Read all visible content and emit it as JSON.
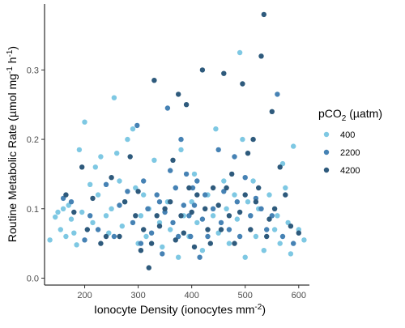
{
  "chart_data": {
    "type": "scatter",
    "title": "",
    "xlabel": "Ionocyte Density (ionocytes mm^-2)",
    "ylabel": "Routine Metabolic Rate (µmol mg^-1 h^-1)",
    "xlim": [
      125,
      620
    ],
    "ylim": [
      -0.01,
      0.395
    ],
    "x_ticks": [
      200,
      300,
      400,
      500,
      600
    ],
    "y_ticks": [
      0.0,
      0.1,
      0.2,
      0.3
    ],
    "x_tick_labels": [
      "200",
      "300",
      "400",
      "500",
      "600"
    ],
    "y_tick_labels": [
      "0.0",
      "0.1",
      "0.2",
      "0.3"
    ],
    "grid": false,
    "legend_position": "right",
    "legend_title": "pCO2 (µatm)",
    "series": [
      {
        "name": "400",
        "color": "#7ec8e3",
        "points": [
          [
            135,
            0.055
          ],
          [
            145,
            0.088
          ],
          [
            150,
            0.095
          ],
          [
            155,
            0.07
          ],
          [
            160,
            0.1
          ],
          [
            165,
            0.06
          ],
          [
            170,
            0.105
          ],
          [
            175,
            0.085
          ],
          [
            180,
            0.065
          ],
          [
            185,
            0.048
          ],
          [
            190,
            0.185
          ],
          [
            195,
            0.095
          ],
          [
            200,
            0.225
          ],
          [
            210,
            0.135
          ],
          [
            215,
            0.08
          ],
          [
            220,
            0.16
          ],
          [
            225,
            0.12
          ],
          [
            230,
            0.175
          ],
          [
            240,
            0.09
          ],
          [
            245,
            0.065
          ],
          [
            250,
            0.1
          ],
          [
            255,
            0.26
          ],
          [
            260,
            0.18
          ],
          [
            265,
            0.14
          ],
          [
            270,
            0.075
          ],
          [
            275,
            0.11
          ],
          [
            280,
            0.2
          ],
          [
            290,
            0.215
          ],
          [
            295,
            0.13
          ],
          [
            300,
            0.05
          ],
          [
            305,
            0.09
          ],
          [
            310,
            0.12
          ],
          [
            315,
            0.06
          ],
          [
            320,
            0.1
          ],
          [
            330,
            0.17
          ],
          [
            340,
            0.08
          ],
          [
            345,
            0.045
          ],
          [
            355,
            0.11
          ],
          [
            360,
            0.07
          ],
          [
            370,
            0.13
          ],
          [
            375,
            0.03
          ],
          [
            380,
            0.185
          ],
          [
            385,
            0.09
          ],
          [
            395,
            0.06
          ],
          [
            400,
            0.11
          ],
          [
            405,
            0.15
          ],
          [
            410,
            0.08
          ],
          [
            420,
            0.04
          ],
          [
            430,
            0.12
          ],
          [
            440,
            0.09
          ],
          [
            445,
            0.215
          ],
          [
            450,
            0.065
          ],
          [
            460,
            0.14
          ],
          [
            465,
            0.1
          ],
          [
            470,
            0.05
          ],
          [
            480,
            0.12
          ],
          [
            485,
            0.085
          ],
          [
            490,
            0.325
          ],
          [
            495,
            0.2
          ],
          [
            500,
            0.03
          ],
          [
            505,
            0.11
          ],
          [
            510,
            0.09
          ],
          [
            515,
            0.14
          ],
          [
            520,
            0.06
          ],
          [
            525,
            0.1
          ],
          [
            535,
            0.04
          ],
          [
            545,
            0.12
          ],
          [
            555,
            0.07
          ],
          [
            560,
            0.09
          ],
          [
            565,
            0.05
          ],
          [
            570,
            0.165
          ],
          [
            575,
            0.13
          ],
          [
            580,
            0.08
          ],
          [
            585,
            0.035
          ],
          [
            590,
            0.19
          ],
          [
            600,
            0.07
          ],
          [
            610,
            0.055
          ]
        ]
      },
      {
        "name": "2200",
        "color": "#4682b4",
        "points": [
          [
            160,
            0.115
          ],
          [
            175,
            0.11
          ],
          [
            200,
            0.055
          ],
          [
            210,
            0.09
          ],
          [
            225,
            0.07
          ],
          [
            240,
            0.135
          ],
          [
            255,
            0.06
          ],
          [
            265,
            0.105
          ],
          [
            280,
            0.125
          ],
          [
            290,
            0.08
          ],
          [
            298,
            0.22
          ],
          [
            305,
            0.05
          ],
          [
            310,
            0.14
          ],
          [
            318,
            0.1
          ],
          [
            325,
            0.065
          ],
          [
            335,
            0.12
          ],
          [
            340,
            0.11
          ],
          [
            345,
            0.035
          ],
          [
            350,
            0.095
          ],
          [
            355,
            0.245
          ],
          [
            360,
            0.155
          ],
          [
            365,
            0.08
          ],
          [
            370,
            0.13
          ],
          [
            375,
            0.06
          ],
          [
            380,
            0.2
          ],
          [
            385,
            0.105
          ],
          [
            390,
            0.15
          ],
          [
            395,
            0.09
          ],
          [
            398,
            0.06
          ],
          [
            402,
            0.13
          ],
          [
            405,
            0.105
          ],
          [
            410,
            0.14
          ],
          [
            415,
            0.03
          ],
          [
            420,
            0.085
          ],
          [
            425,
            0.12
          ],
          [
            430,
            0.06
          ],
          [
            440,
            0.1
          ],
          [
            450,
            0.185
          ],
          [
            455,
            0.08
          ],
          [
            460,
            0.125
          ],
          [
            470,
            0.07
          ],
          [
            480,
            0.175
          ],
          [
            485,
            0.11
          ],
          [
            490,
            0.06
          ],
          [
            500,
            0.145
          ],
          [
            510,
            0.09
          ],
          [
            520,
            0.115
          ],
          [
            530,
            0.1
          ],
          [
            540,
            0.07
          ],
          [
            550,
            0.09
          ],
          [
            560,
            0.265
          ],
          [
            570,
            0.06
          ],
          [
            590,
            0.05
          ]
        ]
      },
      {
        "name": "4200",
        "color": "#2e5a7c",
        "points": [
          [
            165,
            0.12
          ],
          [
            180,
            0.095
          ],
          [
            195,
            0.16
          ],
          [
            205,
            0.07
          ],
          [
            215,
            0.115
          ],
          [
            230,
            0.05
          ],
          [
            240,
            0.06
          ],
          [
            250,
            0.145
          ],
          [
            265,
            0.06
          ],
          [
            275,
            0.11
          ],
          [
            285,
            0.175
          ],
          [
            295,
            0.09
          ],
          [
            300,
            0.125
          ],
          [
            305,
            0.04
          ],
          [
            310,
            0.07
          ],
          [
            320,
            0.015
          ],
          [
            325,
            0.05
          ],
          [
            330,
            0.285
          ],
          [
            335,
            0.09
          ],
          [
            340,
            0.075
          ],
          [
            350,
            0.1
          ],
          [
            360,
            0.11
          ],
          [
            365,
            0.17
          ],
          [
            370,
            0.055
          ],
          [
            375,
            0.265
          ],
          [
            380,
            0.09
          ],
          [
            385,
            0.065
          ],
          [
            390,
            0.25
          ],
          [
            395,
            0.13
          ],
          [
            400,
            0.095
          ],
          [
            405,
            0.045
          ],
          [
            410,
            0.12
          ],
          [
            420,
            0.3
          ],
          [
            425,
            0.1
          ],
          [
            430,
            0.07
          ],
          [
            435,
            0.05
          ],
          [
            440,
            0.13
          ],
          [
            450,
            0.105
          ],
          [
            455,
            0.07
          ],
          [
            460,
            0.295
          ],
          [
            465,
            0.13
          ],
          [
            470,
            0.09
          ],
          [
            475,
            0.15
          ],
          [
            480,
            0.05
          ],
          [
            490,
            0.095
          ],
          [
            495,
            0.28
          ],
          [
            500,
            0.12
          ],
          [
            505,
            0.18
          ],
          [
            510,
            0.07
          ],
          [
            515,
            0.2
          ],
          [
            520,
            0.11
          ],
          [
            525,
            0.13
          ],
          [
            530,
            0.32
          ],
          [
            535,
            0.38
          ],
          [
            540,
            0.06
          ],
          [
            545,
            0.085
          ],
          [
            550,
            0.24
          ],
          [
            555,
            0.1
          ],
          [
            565,
            0.16
          ],
          [
            575,
            0.12
          ],
          [
            585,
            0.075
          ],
          [
            600,
            0.065
          ]
        ]
      }
    ]
  }
}
